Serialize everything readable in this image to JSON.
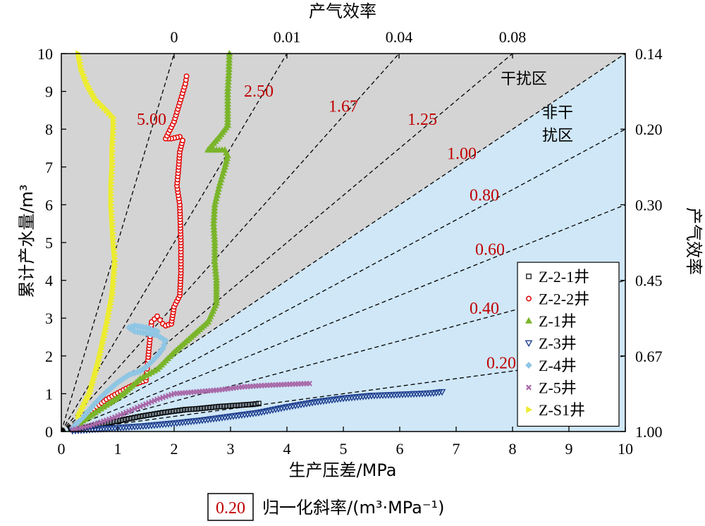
{
  "chart_data": {
    "type": "scatter",
    "xlabel": "生产压差/MPa",
    "ylabel": "累计产水量/m³",
    "top_axis_title": "产气效率",
    "right_axis_title": "产气效率",
    "xlim": [
      0,
      10
    ],
    "ylim": [
      0,
      10
    ],
    "x_ticks": [
      "0",
      "1",
      "2",
      "3",
      "4",
      "5",
      "6",
      "7",
      "8",
      "9",
      "10"
    ],
    "y_ticks": [
      "0",
      "1",
      "2",
      "3",
      "4",
      "5",
      "6",
      "7",
      "8",
      "9",
      "10"
    ],
    "top_ticks": [
      {
        "label": "0",
        "slope": 5.0
      },
      {
        "label": "0.01",
        "slope": 2.5
      },
      {
        "label": "0.04",
        "slope": 1.67
      },
      {
        "label": "0.08",
        "slope": 1.25
      }
    ],
    "right_ticks": [
      {
        "label": "0.14",
        "slope": 1.0
      },
      {
        "label": "0.20",
        "slope": 0.8
      },
      {
        "label": "0.30",
        "slope": 0.6
      },
      {
        "label": "0.45",
        "slope": 0.4
      },
      {
        "label": "0.67",
        "slope": 0.2
      },
      {
        "label": "1.00",
        "slope": 0.0
      }
    ],
    "reference_lines": [
      {
        "slope": 5.0,
        "label": "5.00",
        "label_x": 1.6
      },
      {
        "slope": 2.5,
        "label": "2.50",
        "label_x": 3.5
      },
      {
        "slope": 1.67,
        "label": "1.67",
        "label_x": 5.0
      },
      {
        "slope": 1.25,
        "label": "1.25",
        "label_x": 6.4
      },
      {
        "slope": 1.0,
        "label": "1.00",
        "label_x": 7.1
      },
      {
        "slope": 0.8,
        "label": "0.80",
        "label_x": 7.5
      },
      {
        "slope": 0.6,
        "label": "0.60",
        "label_x": 7.6
      },
      {
        "slope": 0.4,
        "label": "0.40",
        "label_x": 7.5
      },
      {
        "slope": 0.2,
        "label": "0.20",
        "label_x": 7.8
      }
    ],
    "zones": [
      {
        "label": "干扰区",
        "x": 8.2,
        "y": 9.2
      },
      {
        "label": "非干",
        "x": 8.8,
        "y": 8.3
      },
      {
        "label": "扰区",
        "x": 8.8,
        "y": 7.7
      }
    ],
    "series": [
      {
        "name": "Z-2-1井",
        "marker": "square",
        "color": "#000000",
        "points": [
          [
            0.2,
            0.05
          ],
          [
            0.4,
            0.1
          ],
          [
            0.6,
            0.16
          ],
          [
            0.8,
            0.22
          ],
          [
            1.0,
            0.28
          ],
          [
            1.2,
            0.34
          ],
          [
            1.4,
            0.4
          ],
          [
            1.6,
            0.45
          ],
          [
            1.8,
            0.5
          ],
          [
            2.0,
            0.54
          ],
          [
            2.2,
            0.58
          ],
          [
            2.4,
            0.6
          ],
          [
            2.6,
            0.63
          ],
          [
            2.8,
            0.66
          ],
          [
            3.0,
            0.68
          ],
          [
            3.2,
            0.7
          ],
          [
            3.4,
            0.72
          ],
          [
            3.5,
            0.74
          ]
        ]
      },
      {
        "name": "Z-2-2井",
        "marker": "circle",
        "color": "#e00000",
        "points": [
          [
            0.2,
            0.1
          ],
          [
            0.5,
            0.5
          ],
          [
            0.8,
            0.85
          ],
          [
            1.1,
            1.1
          ],
          [
            1.3,
            1.25
          ],
          [
            1.5,
            1.35
          ],
          [
            1.6,
            2.9
          ],
          [
            1.7,
            3.05
          ],
          [
            1.75,
            2.95
          ],
          [
            1.8,
            2.85
          ],
          [
            1.85,
            2.8
          ],
          [
            1.95,
            2.85
          ],
          [
            2.0,
            3.3
          ],
          [
            2.1,
            3.6
          ],
          [
            2.12,
            4.2
          ],
          [
            2.12,
            5.0
          ],
          [
            2.1,
            6.0
          ],
          [
            2.05,
            6.5
          ],
          [
            2.08,
            7.0
          ],
          [
            2.1,
            7.4
          ],
          [
            2.15,
            7.7
          ],
          [
            2.1,
            7.8
          ],
          [
            1.95,
            7.75
          ],
          [
            1.85,
            7.75
          ],
          [
            2.0,
            8.2
          ],
          [
            2.1,
            8.7
          ],
          [
            2.2,
            9.2
          ],
          [
            2.22,
            9.4
          ]
        ]
      },
      {
        "name": "Z-1井",
        "marker": "triangle-up",
        "color": "#7ab52a",
        "points": [
          [
            0.3,
            0.2
          ],
          [
            0.6,
            0.5
          ],
          [
            0.8,
            0.7
          ],
          [
            1.1,
            1.0
          ],
          [
            1.4,
            1.4
          ],
          [
            1.7,
            1.65
          ],
          [
            2.0,
            2.1
          ],
          [
            2.3,
            2.5
          ],
          [
            2.6,
            2.9
          ],
          [
            2.75,
            3.4
          ],
          [
            2.75,
            4.0
          ],
          [
            2.72,
            4.5
          ],
          [
            2.72,
            5.0
          ],
          [
            2.7,
            5.5
          ],
          [
            2.72,
            6.0
          ],
          [
            2.8,
            6.5
          ],
          [
            2.9,
            7.0
          ],
          [
            2.95,
            7.3
          ],
          [
            2.9,
            7.45
          ],
          [
            2.6,
            7.45
          ],
          [
            2.8,
            7.8
          ],
          [
            2.95,
            8.1
          ],
          [
            2.95,
            8.5
          ],
          [
            2.95,
            9.0
          ],
          [
            2.97,
            9.5
          ],
          [
            2.98,
            10.0
          ]
        ]
      },
      {
        "name": "Z-3井",
        "marker": "triangle-down",
        "color": "#1f3f8f",
        "points": [
          [
            0.2,
            0.02
          ],
          [
            0.6,
            0.06
          ],
          [
            1.0,
            0.1
          ],
          [
            1.5,
            0.15
          ],
          [
            2.0,
            0.22
          ],
          [
            2.5,
            0.3
          ],
          [
            3.0,
            0.4
          ],
          [
            3.5,
            0.5
          ],
          [
            4.0,
            0.65
          ],
          [
            4.5,
            0.78
          ],
          [
            5.0,
            0.88
          ],
          [
            5.5,
            0.95
          ],
          [
            6.0,
            0.98
          ],
          [
            6.3,
            1.0
          ],
          [
            6.6,
            1.02
          ],
          [
            6.75,
            1.05
          ]
        ]
      },
      {
        "name": "Z-4井",
        "marker": "diamond",
        "color": "#8fc6e4",
        "points": [
          [
            0.2,
            0.1
          ],
          [
            0.4,
            0.4
          ],
          [
            0.6,
            0.75
          ],
          [
            0.8,
            1.05
          ],
          [
            1.0,
            1.3
          ],
          [
            1.2,
            1.5
          ],
          [
            1.4,
            1.6
          ],
          [
            1.5,
            1.7
          ],
          [
            1.6,
            1.85
          ],
          [
            1.7,
            2.0
          ],
          [
            1.8,
            2.2
          ],
          [
            1.85,
            2.4
          ],
          [
            1.7,
            2.55
          ],
          [
            1.5,
            2.6
          ],
          [
            1.3,
            2.65
          ],
          [
            1.2,
            2.75
          ],
          [
            1.3,
            2.8
          ],
          [
            1.5,
            2.75
          ],
          [
            1.7,
            2.65
          ]
        ]
      },
      {
        "name": "Z-5井",
        "marker": "cross",
        "color": "#a868a8",
        "points": [
          [
            0.2,
            0.05
          ],
          [
            0.5,
            0.15
          ],
          [
            0.9,
            0.35
          ],
          [
            1.3,
            0.6
          ],
          [
            1.7,
            0.85
          ],
          [
            2.0,
            1.0
          ],
          [
            2.4,
            1.05
          ],
          [
            2.8,
            1.1
          ],
          [
            3.2,
            1.18
          ],
          [
            3.6,
            1.22
          ],
          [
            3.9,
            1.24
          ],
          [
            4.2,
            1.26
          ],
          [
            4.4,
            1.27
          ]
        ]
      },
      {
        "name": "Z-S1井",
        "marker": "triangle-right",
        "color": "#ecec30",
        "points": [
          [
            0.3,
            0.4
          ],
          [
            0.5,
            1.0
          ],
          [
            0.65,
            1.8
          ],
          [
            0.8,
            2.8
          ],
          [
            0.9,
            3.6
          ],
          [
            0.95,
            4.5
          ],
          [
            0.92,
            5.0
          ],
          [
            0.9,
            5.5
          ],
          [
            0.88,
            6.0
          ],
          [
            0.88,
            6.5
          ],
          [
            0.9,
            7.0
          ],
          [
            0.9,
            7.5
          ],
          [
            0.92,
            8.0
          ],
          [
            0.92,
            8.3
          ],
          [
            0.8,
            8.5
          ],
          [
            0.6,
            8.8
          ],
          [
            0.45,
            9.2
          ],
          [
            0.35,
            9.6
          ],
          [
            0.3,
            10.0
          ]
        ]
      }
    ]
  },
  "footer": {
    "box_value": "0.20",
    "caption": "归一化斜率/(m³·MPa⁻¹)"
  }
}
